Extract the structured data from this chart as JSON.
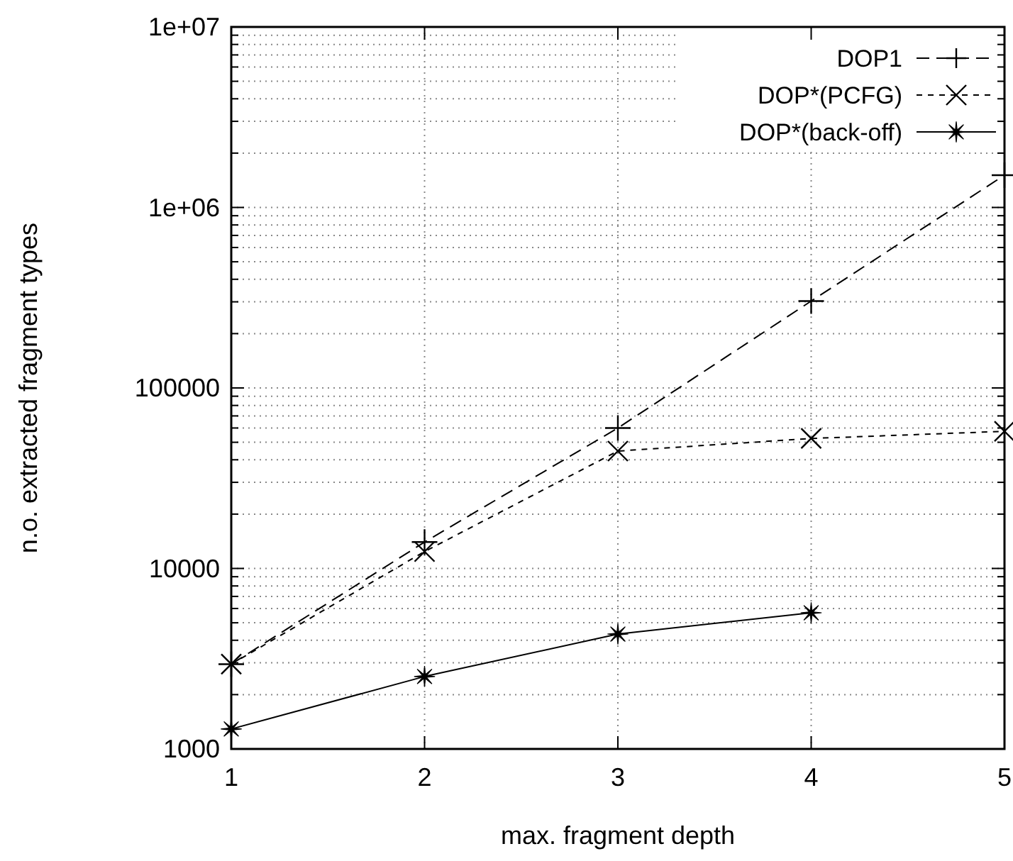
{
  "chart_data": {
    "type": "line",
    "xlabel": "max. fragment depth",
    "ylabel": "n.o. extracted fragment types",
    "x": [
      1,
      2,
      3,
      4,
      5
    ],
    "series": [
      {
        "name": "DOP1",
        "color": "#000000",
        "values": [
          2950,
          14000,
          60000,
          303000,
          1510000
        ],
        "marker": "plus",
        "line_style": "dashed"
      },
      {
        "name": "DOP*(PCFG)",
        "color": "#000000",
        "values": [
          2950,
          12400,
          44700,
          52500,
          57500
        ],
        "marker": "cross",
        "line_style": "dotted"
      },
      {
        "name": "DOP*(back-off)",
        "color": "#000000",
        "values": [
          1290,
          2520,
          4330,
          5680,
          null
        ],
        "marker": "star",
        "line_style": "solid"
      }
    ],
    "log": "y",
    "xlim": [
      1,
      5
    ],
    "ylim": [
      1000,
      10000000
    ],
    "xticks": [
      1,
      2,
      3,
      4,
      5
    ],
    "yticks": [
      1000,
      {
        "value": 2000,
        "label": null
      },
      {
        "value": 3000,
        "label": null
      },
      {
        "value": 4000,
        "label": null
      },
      {
        "value": 5000,
        "label": null
      },
      {
        "value": 6000,
        "label": null
      },
      {
        "value": 7000,
        "label": null
      },
      {
        "value": 8000,
        "label": null
      },
      {
        "value": 9000,
        "label": null
      },
      10000,
      {
        "value": 20000,
        "label": null
      },
      {
        "value": 30000,
        "label": null
      },
      {
        "value": 40000,
        "label": null
      },
      {
        "value": 50000,
        "label": null
      },
      {
        "value": 60000,
        "label": null
      },
      {
        "value": 70000,
        "label": null
      },
      {
        "value": 80000,
        "label": null
      },
      {
        "value": 90000,
        "label": null
      },
      100000,
      {
        "value": 200000,
        "label": null
      },
      {
        "value": 300000,
        "label": null
      },
      {
        "value": 400000,
        "label": null
      },
      {
        "value": 500000,
        "label": null
      },
      {
        "value": 600000,
        "label": null
      },
      {
        "value": 700000,
        "label": null
      },
      {
        "value": 800000,
        "label": null
      },
      {
        "value": 900000,
        "label": null
      },
      {
        "value": 1000000,
        "label": "1e+06"
      },
      {
        "value": 2000000,
        "label": null
      },
      {
        "value": 3000000,
        "label": null
      },
      {
        "value": 4000000,
        "label": null
      },
      {
        "value": 5000000,
        "label": null
      },
      {
        "value": 6000000,
        "label": null
      },
      {
        "value": 7000000,
        "label": null
      },
      {
        "value": 8000000,
        "label": null
      },
      {
        "value": 9000000,
        "label": null
      },
      {
        "value": 10000000,
        "label": "1e+07"
      }
    ],
    "grid": true,
    "legend": "top right"
  }
}
